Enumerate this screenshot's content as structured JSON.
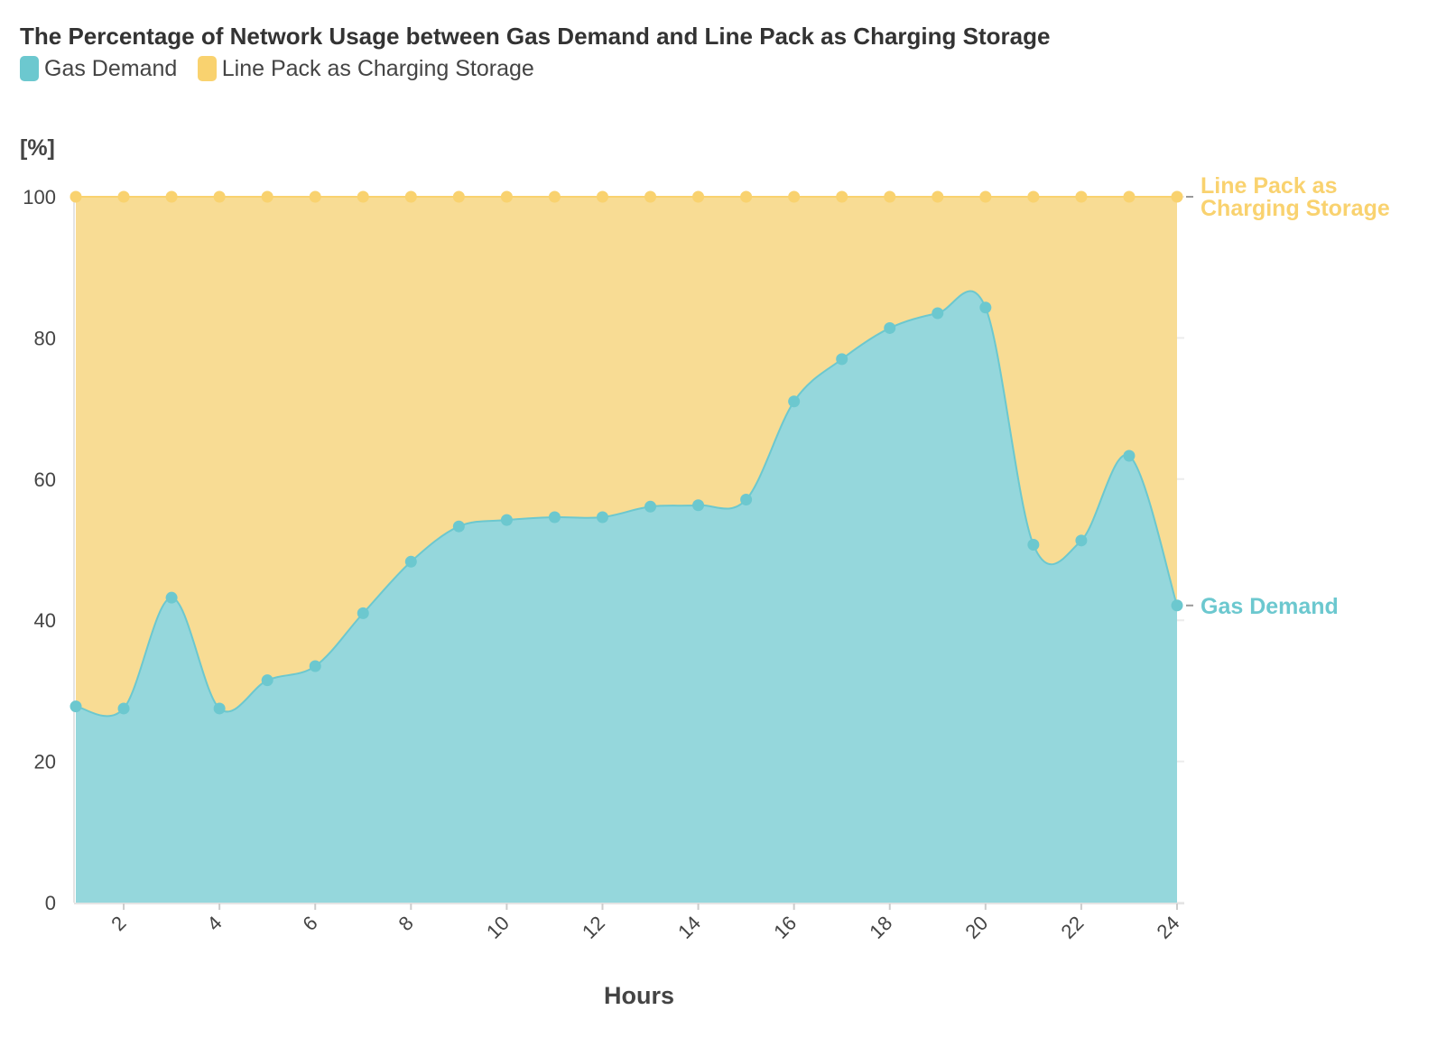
{
  "colors": {
    "gas": "#6cc8cf",
    "gas_fill": "#95d7dc",
    "line": "#f9d26f",
    "line_fill": "#f8dc94",
    "grid": "#ececec"
  },
  "chart_data": {
    "type": "area",
    "stacked": true,
    "title": "The Percentage of Network Usage between Gas Demand and Line Pack as Charging Storage",
    "xlabel": "Hours",
    "ylabel": "[%]",
    "ylim": [
      0,
      100
    ],
    "xlim": [
      1,
      24
    ],
    "yticks": [
      "0",
      "20",
      "40",
      "60",
      "80",
      "100"
    ],
    "xticks": [
      "2",
      "4",
      "6",
      "8",
      "10",
      "12",
      "14",
      "16",
      "18",
      "20",
      "22",
      "24"
    ],
    "x": [
      1,
      2,
      3,
      4,
      5,
      6,
      7,
      8,
      9,
      10,
      11,
      12,
      13,
      14,
      15,
      16,
      17,
      18,
      19,
      20,
      21,
      22,
      23,
      24
    ],
    "series": [
      {
        "name": "Gas Demand",
        "values": [
          27.8,
          27.5,
          43.2,
          27.5,
          31.5,
          33.5,
          41,
          48.3,
          53.3,
          54.2,
          54.6,
          54.6,
          56.1,
          56.3,
          57.1,
          71,
          77,
          81.4,
          83.5,
          84.3,
          50.7,
          51.3,
          63.3,
          42.1
        ]
      },
      {
        "name": "Line Pack as Charging Storage",
        "values": [
          72.2,
          72.5,
          56.8,
          72.5,
          68.5,
          66.5,
          59,
          51.7,
          46.7,
          45.8,
          45.4,
          45.4,
          43.9,
          43.7,
          42.9,
          29,
          23,
          18.6,
          16.5,
          15.7,
          49.3,
          48.7,
          36.7,
          57.9
        ]
      }
    ],
    "legend": {
      "position": "top",
      "items": [
        "Gas Demand",
        "Line Pack as Charging Storage"
      ]
    },
    "end_labels": {
      "line_pack": [
        "Line Pack as",
        "Charging Storage"
      ],
      "gas": "Gas Demand"
    },
    "grid": true
  }
}
